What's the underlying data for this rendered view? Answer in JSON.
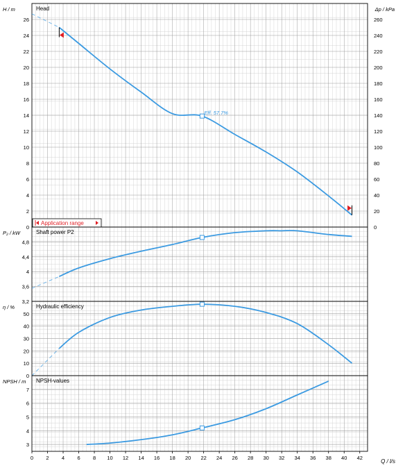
{
  "x_axis": {
    "label": "Q / l/s",
    "ticks": [
      "0",
      "2",
      "4",
      "6",
      "8",
      "10",
      "12",
      "14",
      "16",
      "18",
      "20",
      "22",
      "24",
      "26",
      "28",
      "30",
      "32",
      "34",
      "36",
      "38",
      "40",
      "42"
    ],
    "range": [
      0,
      43
    ]
  },
  "application_range_label": "Application range",
  "duty_point_q": 21.8,
  "chart_data": [
    {
      "type": "line",
      "title": "Head",
      "ylabel": "H / m",
      "ylabel_right": "Δp / kPa",
      "ylim": [
        0,
        28
      ],
      "yticks": [
        "0",
        "2",
        "4",
        "6",
        "8",
        "10",
        "12",
        "14",
        "16",
        "18",
        "20",
        "22",
        "24",
        "26"
      ],
      "yticks_right": [
        "0",
        "20",
        "40",
        "60",
        "80",
        "100",
        "120",
        "140",
        "160",
        "180",
        "200",
        "220",
        "240",
        "260"
      ],
      "annotation": "Eff.  57.7%",
      "series": [
        {
          "style": "solid",
          "x": [
            3.5,
            6,
            10,
            14,
            18,
            21.8,
            26,
            30,
            34,
            38,
            41
          ],
          "y": [
            25.0,
            23.0,
            19.8,
            16.9,
            14.2,
            13.9,
            11.6,
            9.4,
            6.9,
            3.9,
            1.5
          ]
        },
        {
          "style": "dashed",
          "x": [
            0,
            3.5
          ],
          "y": [
            26.7,
            25.0
          ]
        }
      ]
    },
    {
      "type": "line",
      "title": "Shaft power P2",
      "ylabel": "P₂ / kW",
      "ylim": [
        3.2,
        5.2
      ],
      "yticks": [
        "3,2",
        "3,6",
        "4",
        "4,4",
        "4,8"
      ],
      "series": [
        {
          "style": "solid",
          "x": [
            3.5,
            6,
            10,
            14,
            18,
            21.8,
            26,
            30,
            32,
            34,
            38,
            41
          ],
          "y": [
            3.87,
            4.1,
            4.35,
            4.55,
            4.73,
            4.92,
            5.05,
            5.1,
            5.1,
            5.1,
            5.0,
            4.95
          ]
        },
        {
          "style": "dashed",
          "x": [
            0,
            3.5
          ],
          "y": [
            3.55,
            3.87
          ]
        }
      ]
    },
    {
      "type": "line",
      "title": "Hydraulic efficiency",
      "ylabel": "η / %",
      "ylim": [
        0,
        60
      ],
      "yticks": [
        "0",
        "10",
        "20",
        "30",
        "40",
        "50"
      ],
      "series": [
        {
          "style": "solid",
          "x": [
            3.5,
            6,
            10,
            14,
            18,
            21.8,
            26,
            30,
            34,
            38,
            41
          ],
          "y": [
            22,
            35,
            47,
            53,
            56,
            57.7,
            56,
            51,
            42,
            25,
            10
          ]
        },
        {
          "style": "dashed",
          "x": [
            0,
            3.5
          ],
          "y": [
            0,
            22
          ]
        }
      ]
    },
    {
      "type": "line",
      "title": "NPSH-values",
      "ylabel": "NPSH / m",
      "ylim": [
        2.5,
        8
      ],
      "yticks": [
        "3",
        "4",
        "5",
        "6",
        "7"
      ],
      "series": [
        {
          "style": "solid",
          "x": [
            7,
            10,
            14,
            18,
            21.8,
            26,
            30,
            34,
            38
          ],
          "y": [
            3.0,
            3.1,
            3.35,
            3.7,
            4.2,
            4.8,
            5.6,
            6.6,
            7.6
          ]
        }
      ]
    }
  ],
  "colors": {
    "curve": "#3b9ae1",
    "marker": "#e01e24",
    "grid_minor": "#d4d4d4",
    "grid_major": "#9a9a9a"
  }
}
